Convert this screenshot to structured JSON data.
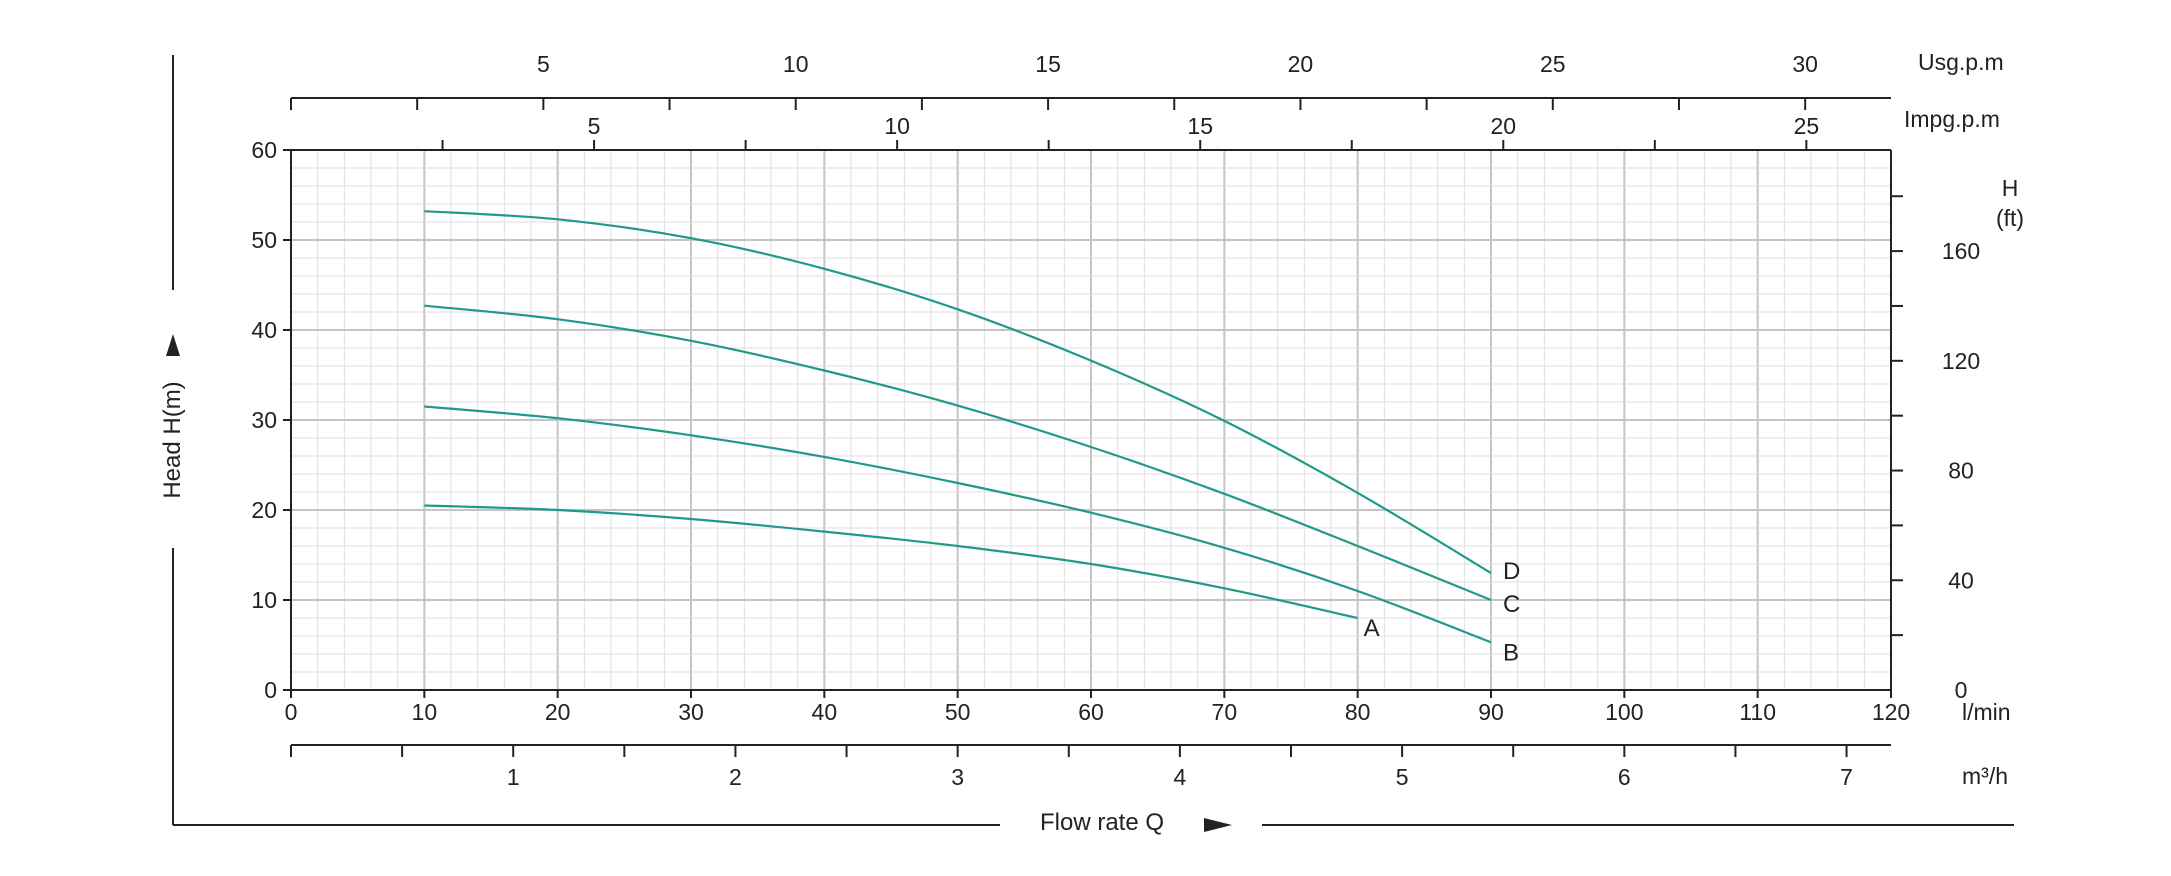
{
  "chart_data": {
    "type": "line",
    "title": "",
    "xlabel": "Flow rate Q",
    "ylabel": "Head H(m)",
    "xlim": [
      0,
      120
    ],
    "ylim": [
      0,
      60
    ],
    "grid": true,
    "x_unit": "l/min",
    "x_ticks": [
      0,
      10,
      20,
      30,
      40,
      50,
      60,
      70,
      80,
      90,
      100,
      110,
      120
    ],
    "y_ticks": [
      0,
      10,
      20,
      30,
      40,
      50,
      60
    ],
    "secondary_axes": {
      "m3h": {
        "unit": "m³/h",
        "ticks": [
          1,
          2,
          3,
          4,
          5,
          6,
          7
        ]
      },
      "usgpm": {
        "unit": "Usg.p.m",
        "ticks": [
          5,
          10,
          15,
          20,
          25,
          30
        ]
      },
      "impgpm": {
        "unit": "Impg.p.m",
        "ticks": [
          5,
          10,
          15,
          20,
          25
        ]
      },
      "head_ft": {
        "unit_line1": "H",
        "unit_line2": "(ft)",
        "ticks": [
          0,
          40,
          80,
          120,
          160
        ]
      }
    },
    "series": [
      {
        "name": "A",
        "x": [
          10,
          20,
          30,
          40,
          50,
          60,
          70,
          80
        ],
        "y": [
          20.5,
          20.0,
          19.0,
          17.6,
          16.0,
          14.0,
          11.3,
          8.0
        ]
      },
      {
        "name": "B",
        "x": [
          10,
          20,
          30,
          40,
          50,
          60,
          70,
          80,
          90
        ],
        "y": [
          31.5,
          30.2,
          28.3,
          25.9,
          23.0,
          19.7,
          15.8,
          11.0,
          5.3
        ]
      },
      {
        "name": "C",
        "x": [
          10,
          20,
          30,
          40,
          50,
          60,
          70,
          80,
          90
        ],
        "y": [
          42.7,
          41.2,
          38.8,
          35.5,
          31.6,
          27.0,
          21.8,
          16.0,
          10.0
        ]
      },
      {
        "name": "D",
        "x": [
          10,
          20,
          30,
          40,
          50,
          60,
          70,
          80,
          90
        ],
        "y": [
          53.2,
          52.3,
          50.2,
          46.8,
          42.3,
          36.6,
          29.9,
          21.9,
          13.0
        ]
      }
    ],
    "line_color": "#1f9a8a"
  }
}
